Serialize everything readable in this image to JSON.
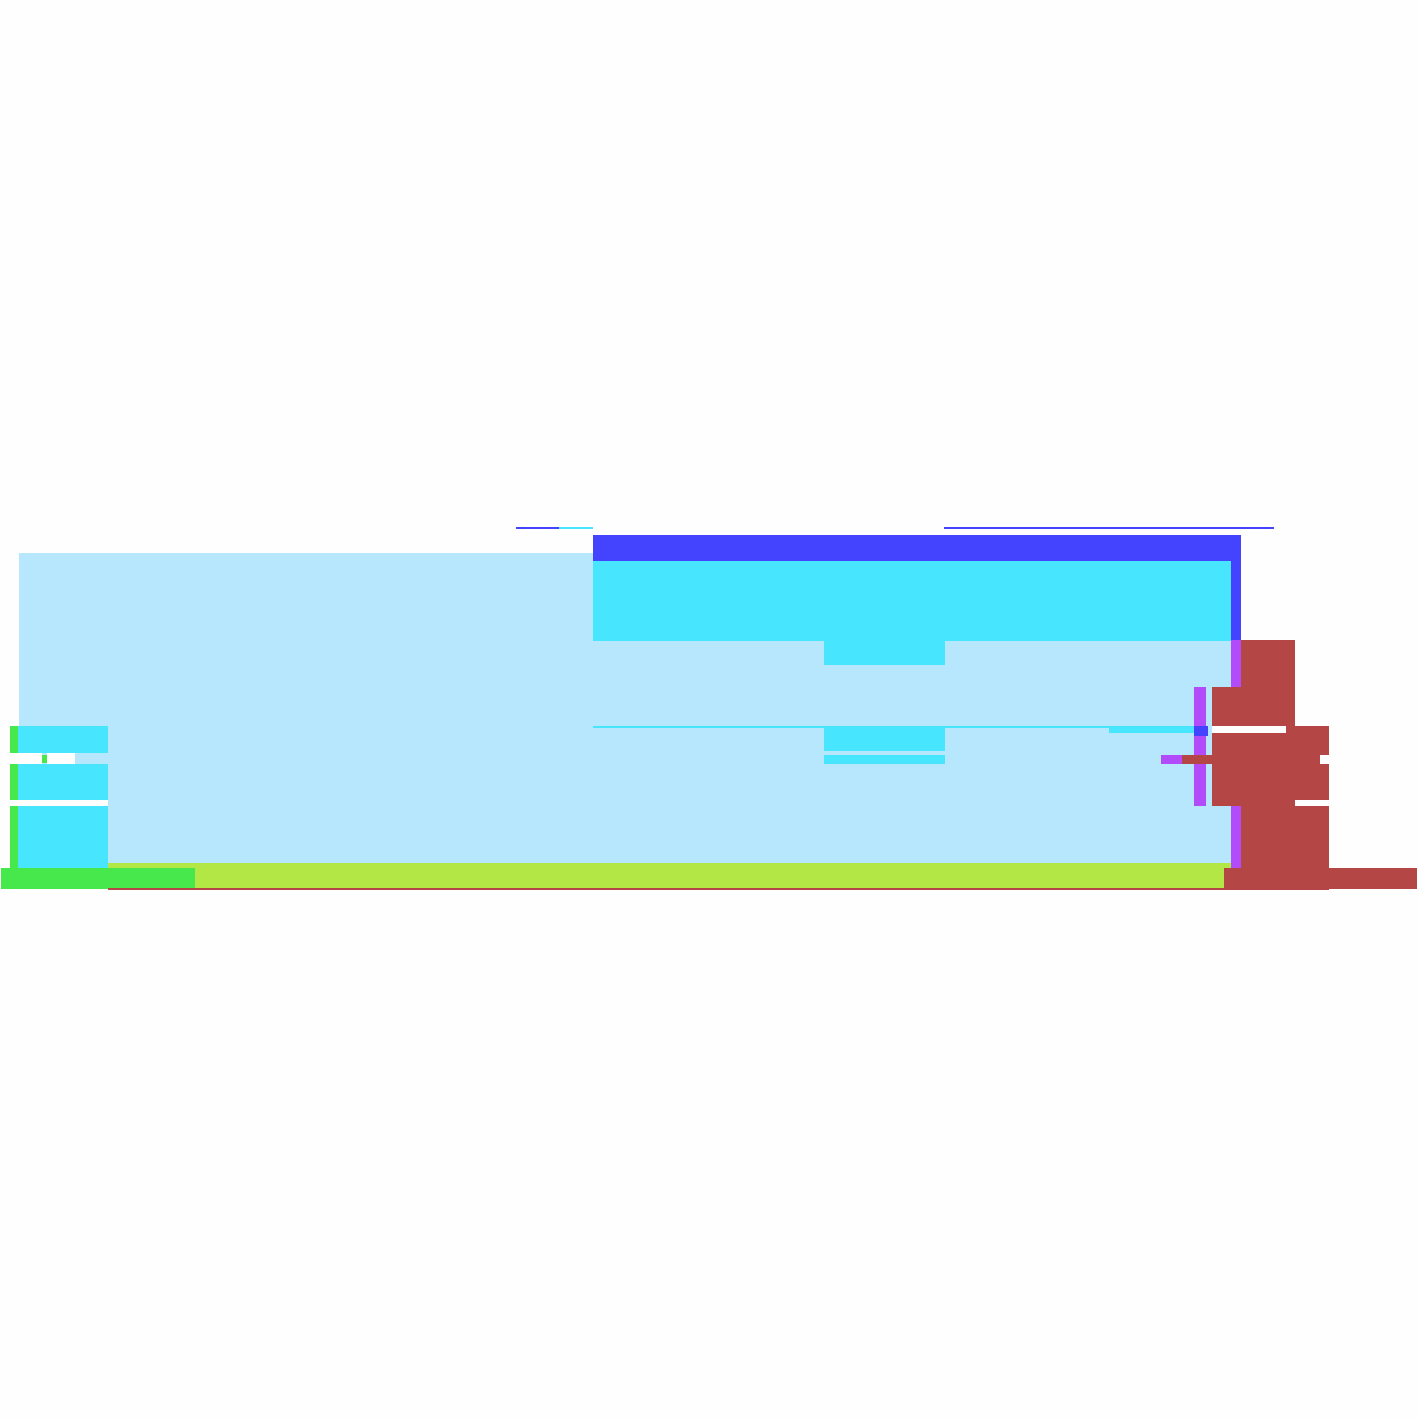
{
  "colors": {
    "background": "#fefefe",
    "sky": "#b7e7fc",
    "cyan": "#47e5fe",
    "blue": "#4444fe",
    "green": "#47e84b",
    "lime": "#b3e746",
    "red": "#b44646",
    "violet": "#b24bfa"
  }
}
